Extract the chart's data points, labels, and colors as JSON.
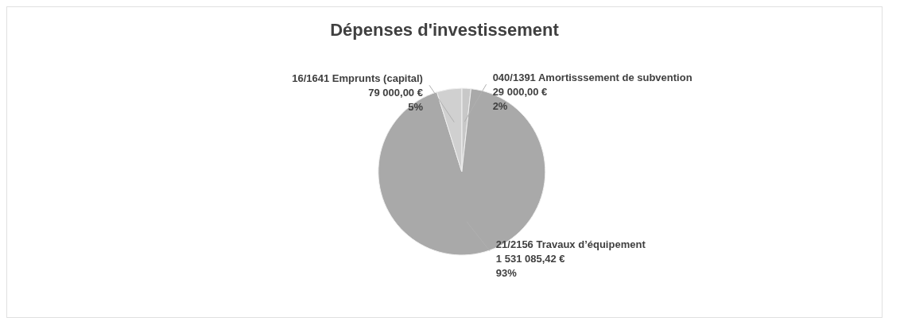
{
  "chart_data": {
    "type": "pie",
    "title": "Dépenses d'investissement",
    "categories": [
      "040/1391 Amortisssement de subvention",
      "21/2156 Travaux d’équipement",
      "16/1641 Emprunts (capital)"
    ],
    "values": [
      29000,
      1531085.42,
      79000
    ],
    "value_labels": [
      "29 000,00 €\n2%",
      "1 531 085,42 €\n93%",
      "79 000,00 €\n5%"
    ],
    "colors": [
      "#c8c8c8",
      "#a9a9a9",
      "#d0d0d0"
    ],
    "legend": false
  }
}
